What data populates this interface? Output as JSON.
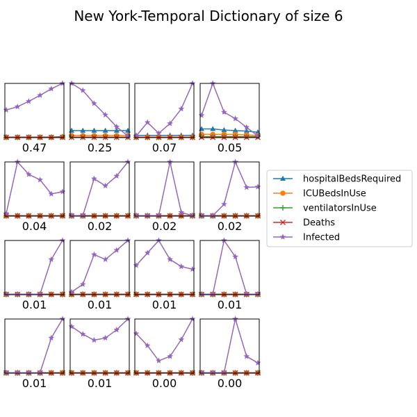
{
  "chart_data": {
    "type": "line",
    "title": "New York-Temporal Dictionary of size 6",
    "x": [
      0,
      1,
      2,
      3,
      4,
      5
    ],
    "ylim": [
      0,
      1
    ],
    "grid": false,
    "legend_placement": "right",
    "series_styles": [
      {
        "name": "hospitalBedsRequired",
        "color": "#1f77b4",
        "marker": "triangle"
      },
      {
        "name": "ICUBedsInUse",
        "color": "#ff7f0e",
        "marker": "circle"
      },
      {
        "name": "ventilatorsInUse",
        "color": "#2ca02c",
        "marker": "plus"
      },
      {
        "name": "Deaths",
        "color": "#d62728",
        "marker": "x"
      },
      {
        "name": "Infected",
        "color": "#9467bd",
        "marker": "star"
      }
    ],
    "atoms": [
      {
        "weight": "0.47",
        "series": {
          "hospitalBedsRequired": [
            0.01,
            0.01,
            0.01,
            0.01,
            0.01,
            0.02
          ],
          "ICUBedsInUse": [
            0.005,
            0.005,
            0.005,
            0.005,
            0.005,
            0.01
          ],
          "ventilatorsInUse": [
            0.005,
            0.005,
            0.005,
            0.005,
            0.005,
            0.01
          ],
          "Deaths": [
            0.005,
            0.005,
            0.005,
            0.005,
            0.005,
            0.005
          ],
          "Infected": [
            0.51,
            0.57,
            0.67,
            0.78,
            0.9,
            1.0
          ]
        }
      },
      {
        "weight": "0.25",
        "series": {
          "hospitalBedsRequired": [
            0.13,
            0.13,
            0.13,
            0.13,
            0.13,
            0.13
          ],
          "ICUBedsInUse": [
            0.04,
            0.04,
            0.04,
            0.04,
            0.04,
            0.04
          ],
          "ventilatorsInUse": [
            0.01,
            0.01,
            0.01,
            0.01,
            0.01,
            0.01
          ],
          "Deaths": [
            0.005,
            0.005,
            0.005,
            0.005,
            0.005,
            0.005
          ],
          "Infected": [
            1.0,
            0.87,
            0.63,
            0.42,
            0.2,
            0.03
          ]
        }
      },
      {
        "weight": "0.07",
        "series": {
          "hospitalBedsRequired": [
            0.04,
            0.04,
            0.04,
            0.04,
            0.04,
            0.04
          ],
          "ICUBedsInUse": [
            0.01,
            0.01,
            0.01,
            0.01,
            0.01,
            0.01
          ],
          "ventilatorsInUse": [
            0.005,
            0.005,
            0.005,
            0.005,
            0.005,
            0.005
          ],
          "Deaths": [
            0.005,
            0.005,
            0.005,
            0.005,
            0.005,
            0.005
          ],
          "Infected": [
            0.03,
            0.28,
            0.08,
            0.26,
            0.53,
            1.0
          ]
        }
      },
      {
        "weight": "0.05",
        "series": {
          "hospitalBedsRequired": [
            0.16,
            0.16,
            0.14,
            0.13,
            0.12,
            0.1
          ],
          "ICUBedsInUse": [
            0.06,
            0.06,
            0.06,
            0.06,
            0.05,
            0.04
          ],
          "ventilatorsInUse": [
            0.02,
            0.02,
            0.02,
            0.02,
            0.02,
            0.02
          ],
          "Deaths": [
            0.005,
            0.005,
            0.005,
            0.005,
            0.005,
            0.005
          ],
          "Infected": [
            0.41,
            1.0,
            0.47,
            0.35,
            0.19,
            0.03
          ]
        }
      },
      {
        "weight": "0.04",
        "series": {
          "hospitalBedsRequired": [
            0.01,
            0.01,
            0.01,
            0.01,
            0.01,
            0.01
          ],
          "ICUBedsInUse": [
            0.005,
            0.005,
            0.005,
            0.005,
            0.005,
            0.005
          ],
          "ventilatorsInUse": [
            0.005,
            0.005,
            0.005,
            0.005,
            0.005,
            0.005
          ],
          "Deaths": [
            0.005,
            0.005,
            0.005,
            0.005,
            0.005,
            0.005
          ],
          "Infected": [
            0.05,
            1.0,
            0.77,
            0.67,
            0.41,
            0.45
          ]
        }
      },
      {
        "weight": "0.02",
        "series": {
          "hospitalBedsRequired": [
            0.01,
            0.01,
            0.01,
            0.01,
            0.01,
            0.01
          ],
          "ICUBedsInUse": [
            0.005,
            0.005,
            0.005,
            0.005,
            0.005,
            0.005
          ],
          "ventilatorsInUse": [
            0.005,
            0.005,
            0.005,
            0.005,
            0.005,
            0.005
          ],
          "Deaths": [
            0.005,
            0.005,
            0.005,
            0.005,
            0.005,
            0.005
          ],
          "Infected": [
            0.01,
            0.01,
            0.69,
            0.56,
            0.74,
            1.0
          ]
        }
      },
      {
        "weight": "0.02",
        "series": {
          "hospitalBedsRequired": [
            0.01,
            0.01,
            0.01,
            0.01,
            0.01,
            0.01
          ],
          "ICUBedsInUse": [
            0.005,
            0.005,
            0.005,
            0.005,
            0.005,
            0.005
          ],
          "ventilatorsInUse": [
            0.005,
            0.005,
            0.005,
            0.005,
            0.005,
            0.005
          ],
          "Deaths": [
            0.005,
            0.005,
            0.005,
            0.005,
            0.005,
            0.005
          ],
          "Infected": [
            0.01,
            0.01,
            0.01,
            1.0,
            0.07,
            0.01
          ]
        }
      },
      {
        "weight": "0.02",
        "series": {
          "hospitalBedsRequired": [
            0.01,
            0.01,
            0.01,
            0.01,
            0.01,
            0.01
          ],
          "ICUBedsInUse": [
            0.005,
            0.005,
            0.005,
            0.005,
            0.005,
            0.005
          ],
          "ventilatorsInUse": [
            0.005,
            0.005,
            0.005,
            0.005,
            0.005,
            0.005
          ],
          "Deaths": [
            0.005,
            0.005,
            0.005,
            0.005,
            0.005,
            0.005
          ],
          "Infected": [
            0.01,
            0.01,
            0.22,
            1.0,
            0.53,
            0.54
          ]
        }
      },
      {
        "weight": "0.01",
        "series": {
          "hospitalBedsRequired": [
            0.01,
            0.01,
            0.01,
            0.01,
            0.01,
            0.01
          ],
          "ICUBedsInUse": [
            0.005,
            0.005,
            0.005,
            0.005,
            0.005,
            0.005
          ],
          "ventilatorsInUse": [
            0.005,
            0.005,
            0.005,
            0.005,
            0.005,
            0.005
          ],
          "Deaths": [
            0.005,
            0.005,
            0.005,
            0.005,
            0.005,
            0.005
          ],
          "Infected": [
            0.01,
            0.01,
            0.01,
            0.01,
            0.65,
            1.0
          ]
        }
      },
      {
        "weight": "0.01",
        "series": {
          "hospitalBedsRequired": [
            0.01,
            0.01,
            0.01,
            0.01,
            0.01,
            0.01
          ],
          "ICUBedsInUse": [
            0.005,
            0.005,
            0.005,
            0.005,
            0.005,
            0.005
          ],
          "ventilatorsInUse": [
            0.005,
            0.005,
            0.005,
            0.005,
            0.005,
            0.005
          ],
          "Deaths": [
            0.005,
            0.005,
            0.005,
            0.005,
            0.005,
            0.005
          ],
          "Infected": [
            0.05,
            0.19,
            0.74,
            0.65,
            0.82,
            1.0
          ]
        }
      },
      {
        "weight": "0.01",
        "series": {
          "hospitalBedsRequired": [
            0.01,
            0.01,
            0.01,
            0.01,
            0.01,
            0.01
          ],
          "ICUBedsInUse": [
            0.005,
            0.005,
            0.005,
            0.005,
            0.005,
            0.005
          ],
          "ventilatorsInUse": [
            0.005,
            0.005,
            0.005,
            0.005,
            0.005,
            0.005
          ],
          "Deaths": [
            0.005,
            0.005,
            0.005,
            0.005,
            0.005,
            0.005
          ],
          "Infected": [
            0.54,
            0.77,
            1.0,
            0.65,
            0.52,
            0.47
          ]
        }
      },
      {
        "weight": "0.01",
        "series": {
          "hospitalBedsRequired": [
            0.01,
            0.01,
            0.01,
            0.01,
            0.01,
            0.01
          ],
          "ICUBedsInUse": [
            0.005,
            0.005,
            0.005,
            0.005,
            0.005,
            0.005
          ],
          "ventilatorsInUse": [
            0.005,
            0.005,
            0.005,
            0.005,
            0.005,
            0.005
          ],
          "Deaths": [
            0.005,
            0.005,
            0.005,
            0.005,
            0.005,
            0.005
          ],
          "Infected": [
            0.01,
            0.01,
            1.0,
            0.7,
            0.01,
            0.01
          ]
        }
      },
      {
        "weight": "0.01",
        "series": {
          "hospitalBedsRequired": [
            0.01,
            0.01,
            0.01,
            0.01,
            0.01,
            0.01
          ],
          "ICUBedsInUse": [
            0.005,
            0.005,
            0.005,
            0.005,
            0.005,
            0.005
          ],
          "ventilatorsInUse": [
            0.005,
            0.005,
            0.005,
            0.005,
            0.005,
            0.005
          ],
          "Deaths": [
            0.005,
            0.005,
            0.005,
            0.005,
            0.005,
            0.005
          ],
          "Infected": [
            0.01,
            0.01,
            0.01,
            0.01,
            0.65,
            1.0
          ]
        }
      },
      {
        "weight": "0.01",
        "series": {
          "hospitalBedsRequired": [
            0.01,
            0.01,
            0.01,
            0.01,
            0.01,
            0.01
          ],
          "ICUBedsInUse": [
            0.005,
            0.005,
            0.005,
            0.005,
            0.005,
            0.005
          ],
          "ventilatorsInUse": [
            0.005,
            0.005,
            0.005,
            0.005,
            0.005,
            0.005
          ],
          "Deaths": [
            0.005,
            0.005,
            0.005,
            0.005,
            0.005,
            0.005
          ],
          "Infected": [
            0.86,
            0.72,
            0.61,
            0.65,
            0.8,
            1.0
          ]
        }
      },
      {
        "weight": "0.00",
        "series": {
          "hospitalBedsRequired": [
            0.01,
            0.01,
            0.01,
            0.01,
            0.01,
            0.01
          ],
          "ICUBedsInUse": [
            0.005,
            0.005,
            0.005,
            0.005,
            0.005,
            0.005
          ],
          "ventilatorsInUse": [
            0.005,
            0.005,
            0.005,
            0.005,
            0.005,
            0.005
          ],
          "Deaths": [
            0.005,
            0.005,
            0.005,
            0.005,
            0.005,
            0.005
          ],
          "Infected": [
            0.73,
            0.51,
            0.23,
            0.31,
            0.62,
            1.0
          ]
        }
      },
      {
        "weight": "0.00",
        "series": {
          "hospitalBedsRequired": [
            0.01,
            0.01,
            0.01,
            0.01,
            0.01,
            0.01
          ],
          "ICUBedsInUse": [
            0.005,
            0.005,
            0.005,
            0.005,
            0.005,
            0.005
          ],
          "ventilatorsInUse": [
            0.005,
            0.005,
            0.005,
            0.005,
            0.005,
            0.005
          ],
          "Deaths": [
            0.005,
            0.005,
            0.005,
            0.005,
            0.005,
            0.005
          ],
          "Infected": [
            0.01,
            0.01,
            0.01,
            1.0,
            0.31,
            0.19
          ]
        }
      }
    ]
  }
}
